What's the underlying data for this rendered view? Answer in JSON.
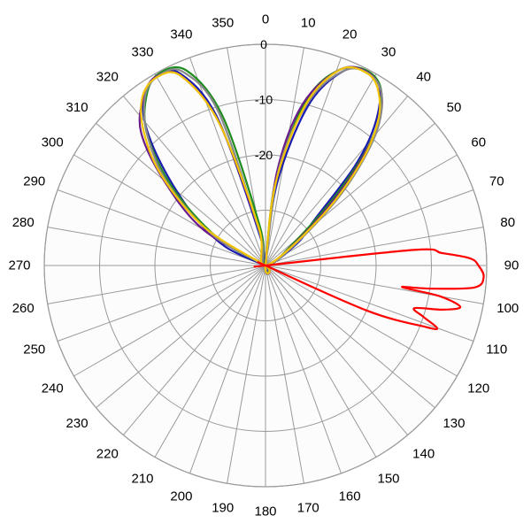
{
  "chart_data": {
    "type": "line",
    "coordinate_system": "polar",
    "zero_direction": "top",
    "rotation": "clockwise",
    "angle_ticks": [
      "0",
      "10",
      "20",
      "30",
      "40",
      "50",
      "60",
      "70",
      "80",
      "90",
      "100",
      "110",
      "120",
      "130",
      "140",
      "150",
      "160",
      "170",
      "180",
      "190",
      "200",
      "210",
      "220",
      "230",
      "240",
      "250",
      "260",
      "270",
      "280",
      "290",
      "300",
      "310",
      "320",
      "330",
      "340",
      "350"
    ],
    "radial_ticks": [
      {
        "value": 0,
        "label": "0"
      },
      {
        "value": -10,
        "label": "-10"
      },
      {
        "value": -20,
        "label": "-20"
      },
      {
        "value": -30,
        "label": ""
      }
    ],
    "rlim": [
      -40,
      0
    ],
    "grid": true,
    "legend": "none",
    "series": [
      {
        "color": "#1a1ab0",
        "points": [
          [
            0,
            -40
          ],
          [
            8,
            -25
          ],
          [
            15,
            -10
          ],
          [
            22,
            -2
          ],
          [
            28,
            -0.5
          ],
          [
            33,
            -2
          ],
          [
            38,
            -8
          ],
          [
            42,
            -16
          ],
          [
            47,
            -28
          ],
          [
            55,
            -33
          ],
          [
            60,
            -40
          ],
          [
            350,
            -35
          ],
          [
            342,
            -12
          ],
          [
            336,
            -2
          ],
          [
            330,
            -0.5
          ],
          [
            325,
            -2
          ],
          [
            320,
            -6
          ],
          [
            314,
            -14
          ],
          [
            305,
            -24
          ],
          [
            295,
            -32
          ],
          [
            285,
            -40
          ]
        ]
      },
      {
        "color": "#1e8c1e",
        "points": [
          [
            0,
            -40
          ],
          [
            7,
            -24
          ],
          [
            14,
            -9
          ],
          [
            21,
            -2
          ],
          [
            28,
            -0.3
          ],
          [
            34,
            -2.5
          ],
          [
            40,
            -10
          ],
          [
            45,
            -22
          ],
          [
            52,
            -34
          ],
          [
            60,
            -40
          ],
          [
            352,
            -33
          ],
          [
            344,
            -12
          ],
          [
            338,
            -2
          ],
          [
            331,
            -0.3
          ],
          [
            325,
            -2.5
          ],
          [
            318,
            -8
          ],
          [
            310,
            -18
          ],
          [
            300,
            -30
          ],
          [
            290,
            -40
          ]
        ]
      },
      {
        "color": "#6a1a8c",
        "points": [
          [
            0,
            -40
          ],
          [
            7,
            -23
          ],
          [
            13,
            -10
          ],
          [
            21,
            -2
          ],
          [
            28,
            -0.5
          ],
          [
            34,
            -2.5
          ],
          [
            39,
            -8
          ],
          [
            44,
            -18
          ],
          [
            50,
            -30
          ],
          [
            58,
            -40
          ],
          [
            350,
            -34
          ],
          [
            342,
            -13
          ],
          [
            336,
            -2.5
          ],
          [
            330,
            -0.5
          ],
          [
            324,
            -2.5
          ],
          [
            317,
            -7
          ],
          [
            310,
            -16
          ],
          [
            300,
            -27
          ],
          [
            288,
            -40
          ]
        ]
      },
      {
        "color": "#888888",
        "points": [
          [
            0,
            -40
          ],
          [
            8,
            -22
          ],
          [
            15,
            -9
          ],
          [
            22,
            -2
          ],
          [
            28,
            -0.6
          ],
          [
            34,
            -2.5
          ],
          [
            40,
            -9
          ],
          [
            46,
            -20
          ],
          [
            53,
            -32
          ],
          [
            62,
            -40
          ],
          [
            350,
            -34
          ],
          [
            343,
            -11
          ],
          [
            337,
            -2
          ],
          [
            331,
            -0.6
          ],
          [
            325,
            -2.2
          ],
          [
            318,
            -8
          ],
          [
            310,
            -17
          ],
          [
            300,
            -29
          ],
          [
            288,
            -40
          ]
        ]
      },
      {
        "color": "#f2c400",
        "points": [
          [
            0,
            -40
          ],
          [
            7,
            -25
          ],
          [
            14,
            -10
          ],
          [
            21,
            -2
          ],
          [
            28,
            -0.7
          ],
          [
            33,
            -2.5
          ],
          [
            38,
            -7
          ],
          [
            43,
            -15
          ],
          [
            49,
            -27
          ],
          [
            56,
            -40
          ],
          [
            350,
            -33
          ],
          [
            342,
            -13
          ],
          [
            336,
            -2.5
          ],
          [
            330,
            -0.7
          ],
          [
            324,
            -2.2
          ],
          [
            318,
            -7
          ],
          [
            311,
            -15
          ],
          [
            302,
            -27
          ],
          [
            290,
            -40
          ]
        ]
      },
      {
        "color": "#ff0000",
        "points": [
          [
            0,
            -40
          ],
          [
            40,
            -40
          ],
          [
            84,
            -13
          ],
          [
            86,
            -8
          ],
          [
            88,
            -3
          ],
          [
            90,
            -1.5
          ],
          [
            93,
            -0.5
          ],
          [
            96,
            -2
          ],
          [
            98,
            -10
          ],
          [
            99,
            -15
          ],
          [
            100,
            -8
          ],
          [
            102,
            -4
          ],
          [
            104,
            -7
          ],
          [
            106,
            -12
          ],
          [
            108,
            -10
          ],
          [
            110,
            -7
          ],
          [
            111,
            -9
          ],
          [
            114,
            -20
          ],
          [
            120,
            -40
          ],
          [
            340,
            -40
          ]
        ]
      }
    ]
  }
}
